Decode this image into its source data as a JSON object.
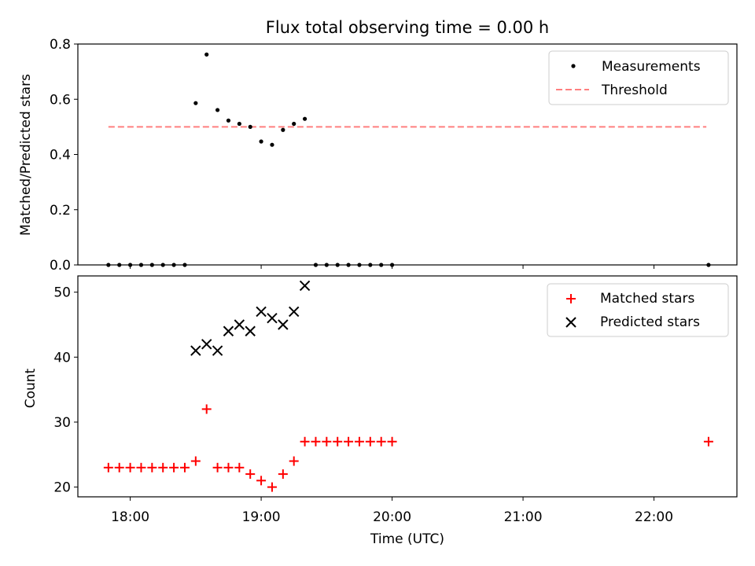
{
  "title": "Flux total observing time = 0.00 h",
  "xlabel": "Time (UTC)",
  "x_tick_labels": [
    "18:00",
    "19:00",
    "20:00",
    "21:00",
    "22:00"
  ],
  "colors": {
    "measurement": "#000000",
    "threshold": "#ff7f7f",
    "matched": "#ff0000",
    "predicted": "#000000"
  },
  "chart_data": [
    {
      "type": "scatter",
      "title": "Flux total observing time = 0.00 h",
      "ylabel": "Matched/Predicted stars",
      "ylim": [
        0,
        0.8
      ],
      "yticks": [
        0.0,
        0.2,
        0.4,
        0.6,
        0.8
      ],
      "ytick_labels": [
        "0.0",
        "0.2",
        "0.4",
        "0.6",
        "0.8"
      ],
      "xlim": [
        "17:36",
        "22:38"
      ],
      "legend": [
        "Measurements",
        "Threshold"
      ],
      "legend_position": "top-right",
      "grid": false,
      "series": [
        {
          "name": "Measurements",
          "marker": "dot",
          "x": [
            "17:50",
            "17:55",
            "18:00",
            "18:05",
            "18:10",
            "18:15",
            "18:20",
            "18:25",
            "18:30",
            "18:35",
            "18:40",
            "18:45",
            "18:50",
            "18:55",
            "19:00",
            "19:05",
            "19:10",
            "19:15",
            "19:20",
            "19:25",
            "19:30",
            "19:35",
            "19:40",
            "19:45",
            "19:50",
            "19:55",
            "20:00",
            "22:25"
          ],
          "y": [
            0,
            0,
            0,
            0,
            0,
            0,
            0,
            0,
            0.586,
            0.762,
            0.561,
            0.523,
            0.511,
            0.5,
            0.447,
            0.435,
            0.489,
            0.511,
            0.529,
            0,
            0,
            0,
            0,
            0,
            0,
            0,
            0,
            0
          ]
        },
        {
          "name": "Threshold",
          "style": "dashed",
          "x": [
            "17:50",
            "22:24"
          ],
          "y": [
            0.5,
            0.5
          ]
        }
      ]
    },
    {
      "type": "scatter",
      "xlabel": "Time (UTC)",
      "ylabel": "Count",
      "ylim": [
        18.5,
        52.5
      ],
      "yticks": [
        20,
        30,
        40,
        50
      ],
      "ytick_labels": [
        "20",
        "30",
        "40",
        "50"
      ],
      "xlim": [
        "17:36",
        "22:38"
      ],
      "legend": [
        "Matched stars",
        "Predicted stars"
      ],
      "legend_position": "top-right",
      "grid": false,
      "series": [
        {
          "name": "Matched stars",
          "marker": "plus",
          "x": [
            "17:50",
            "17:55",
            "18:00",
            "18:05",
            "18:10",
            "18:15",
            "18:20",
            "18:25",
            "18:30",
            "18:35",
            "18:40",
            "18:45",
            "18:50",
            "18:55",
            "19:00",
            "19:05",
            "19:10",
            "19:15",
            "19:20",
            "19:25",
            "19:30",
            "19:35",
            "19:40",
            "19:45",
            "19:50",
            "19:55",
            "20:00",
            "22:25"
          ],
          "y": [
            23,
            23,
            23,
            23,
            23,
            23,
            23,
            23,
            24,
            32,
            23,
            23,
            23,
            22,
            21,
            20,
            22,
            24,
            27,
            27,
            27,
            27,
            27,
            27,
            27,
            27,
            27,
            27
          ]
        },
        {
          "name": "Predicted stars",
          "marker": "x",
          "x": [
            "18:30",
            "18:35",
            "18:40",
            "18:45",
            "18:50",
            "18:55",
            "19:00",
            "19:05",
            "19:10",
            "19:15",
            "19:20"
          ],
          "y": [
            41,
            42,
            41,
            44,
            45,
            44,
            47,
            46,
            45,
            47,
            51
          ]
        }
      ]
    }
  ]
}
